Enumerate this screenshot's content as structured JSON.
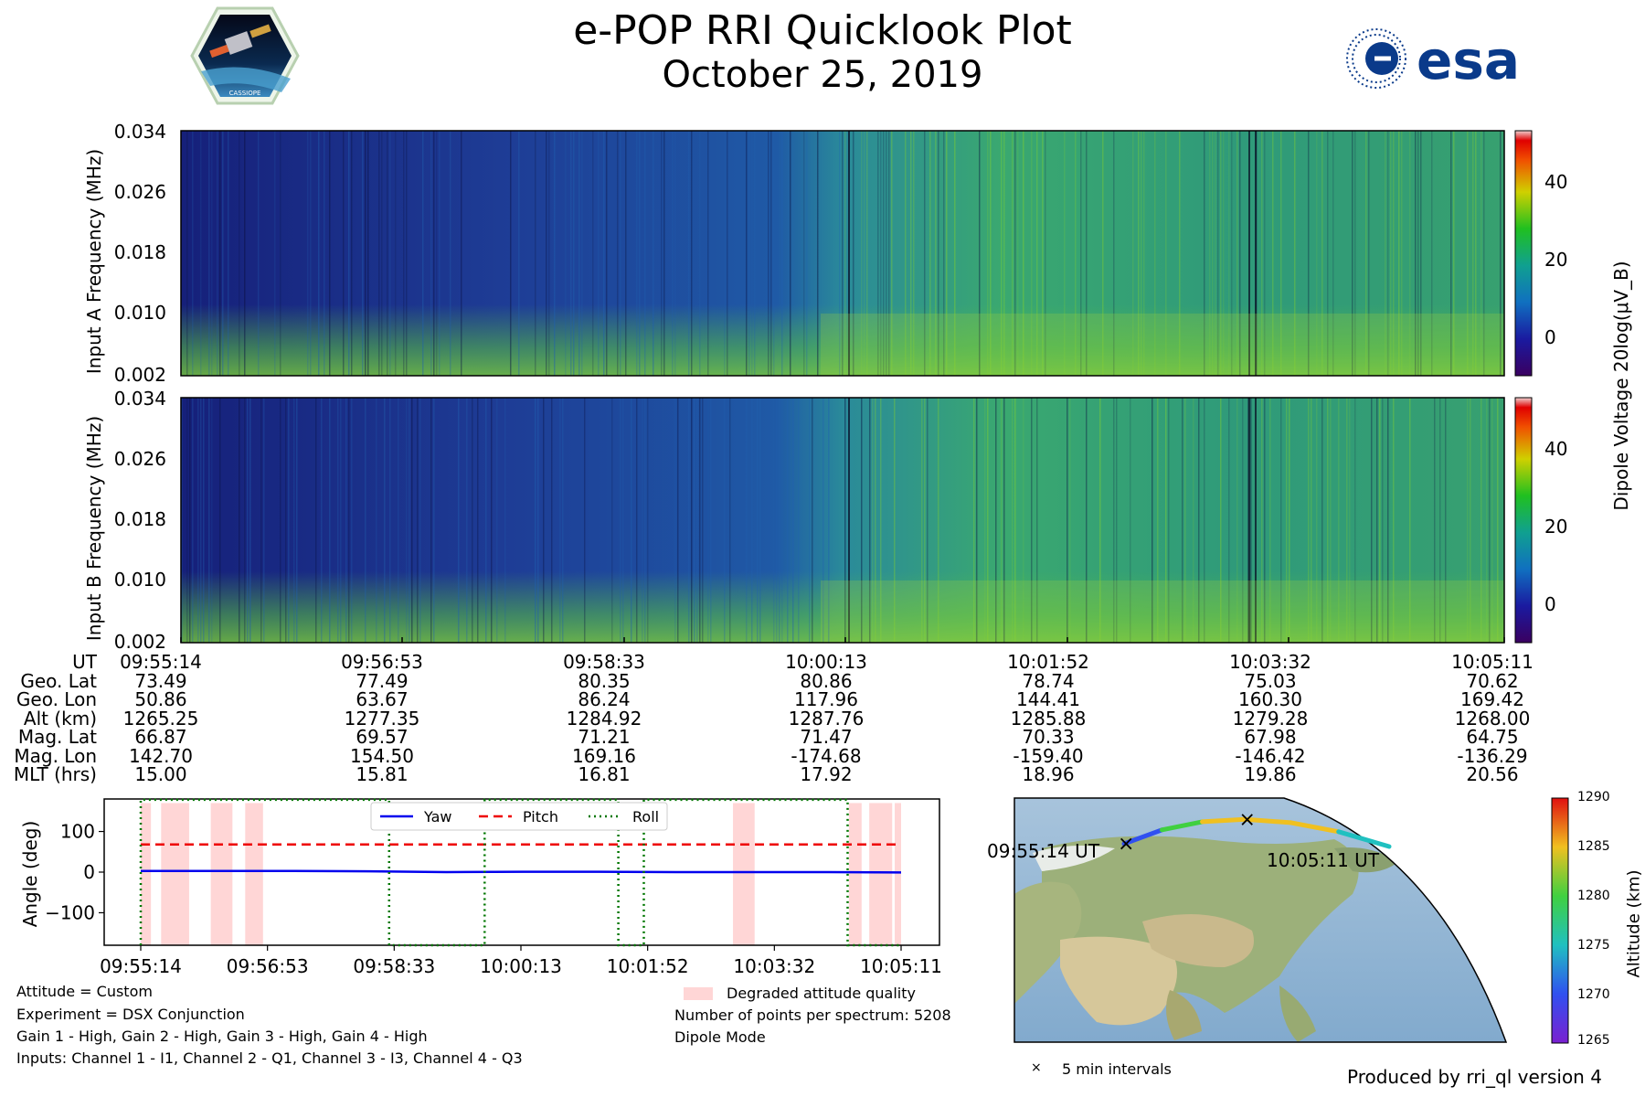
{
  "header": {
    "title": "e-POP RRI Quicklook Plot",
    "subtitle": "October 25, 2019",
    "esa_logo_text": "esa",
    "cassiope_logo_text": "CASSIOPE"
  },
  "colors": {
    "spec_low": "#1a2a8a",
    "spec_mid": "#1f7fa8",
    "spec_high": "#58c040",
    "yaw": "#0000ee",
    "pitch": "#ee0000",
    "roll": "#007700",
    "degraded": "#ffd6d6"
  },
  "chart_data": [
    {
      "type": "heatmap",
      "name": "Input A spectrogram",
      "ylabel": "Input A Frequency (MHz)",
      "yticks": [
        "0.034",
        "0.026",
        "0.018",
        "0.010",
        "0.002"
      ],
      "ylim": [
        0.002,
        0.034
      ],
      "colorbar_label": "Dipole Voltage 20log(μV_B)",
      "colorbar_ticks": [
        "40",
        "20",
        "0"
      ]
    },
    {
      "type": "heatmap",
      "name": "Input B spectrogram",
      "ylabel": "Input B Frequency (MHz)",
      "yticks": [
        "0.034",
        "0.026",
        "0.018",
        "0.010",
        "0.002"
      ],
      "ylim": [
        0.002,
        0.034
      ],
      "colorbar_ticks": [
        "40",
        "20",
        "0"
      ]
    },
    {
      "type": "table",
      "name": "Ephemeris",
      "row_labels": [
        "UT",
        "Geo. Lat",
        "Geo. Lon",
        "Alt (km)",
        "Mag. Lat",
        "Mag. Lon",
        "MLT (hrs)"
      ],
      "columns": [
        [
          "09:55:14",
          "73.49",
          "50.86",
          "1265.25",
          "66.87",
          "142.70",
          "15.00"
        ],
        [
          "09:56:53",
          "77.49",
          "63.67",
          "1277.35",
          "69.57",
          "154.50",
          "15.81"
        ],
        [
          "09:58:33",
          "80.35",
          "86.24",
          "1284.92",
          "71.21",
          "169.16",
          "16.81"
        ],
        [
          "10:00:13",
          "80.86",
          "117.96",
          "1287.76",
          "71.47",
          "-174.68",
          "17.92"
        ],
        [
          "10:01:52",
          "78.74",
          "144.41",
          "1285.88",
          "70.33",
          "-159.40",
          "18.96"
        ],
        [
          "10:03:32",
          "75.03",
          "160.30",
          "1279.28",
          "67.98",
          "-146.42",
          "19.86"
        ],
        [
          "10:05:11",
          "70.62",
          "169.42",
          "1268.00",
          "64.75",
          "-136.29",
          "20.56"
        ]
      ]
    },
    {
      "type": "line",
      "name": "Attitude",
      "ylabel": "Angle (deg)",
      "ylim": [
        -180,
        180
      ],
      "yticks": [
        "100",
        "0",
        "−100"
      ],
      "xticks": [
        "09:55:14",
        "09:56:53",
        "09:58:33",
        "10:00:13",
        "10:01:52",
        "10:03:32",
        "10:05:11"
      ],
      "x_range_s": [
        0,
        597
      ],
      "series": [
        {
          "name": "Yaw",
          "x": [
            0,
            60,
            120,
            180,
            240,
            300,
            360,
            420,
            480,
            540,
            597
          ],
          "values": [
            3,
            3,
            3,
            2,
            0,
            1,
            1,
            0,
            0,
            0,
            -1
          ]
        },
        {
          "name": "Pitch",
          "x": [
            0,
            597
          ],
          "values": [
            68,
            68
          ]
        },
        {
          "name": "Roll",
          "x": [
            0,
            0,
            195,
            195,
            270,
            270,
            375,
            375,
            395,
            395,
            555,
            555,
            597
          ],
          "values": [
            -180,
            178,
            178,
            -180,
            -180,
            178,
            178,
            -180,
            -180,
            178,
            178,
            -180,
            -180
          ]
        }
      ],
      "degraded_intervals": [
        [
          0,
          8
        ],
        [
          16,
          38
        ],
        [
          55,
          72
        ],
        [
          82,
          96
        ],
        [
          465,
          482
        ],
        [
          556,
          566
        ],
        [
          572,
          590
        ],
        [
          592,
          597
        ]
      ],
      "degraded_label": "Degraded attitude quality"
    },
    {
      "type": "scatter",
      "name": "Ground track map",
      "start_label": "09:55:14 UT",
      "end_label": "10:05:11 UT",
      "marker_label": "5 min intervals",
      "colorbar_label": "Altitude (km)",
      "colorbar_ticks": [
        "1290",
        "1285",
        "1280",
        "1275",
        "1270",
        "1265"
      ],
      "clim": [
        1265,
        1290
      ],
      "track": [
        {
          "t": 0,
          "alt": 1265.25
        },
        {
          "t": 99,
          "alt": 1277.35
        },
        {
          "t": 199,
          "alt": 1284.92
        },
        {
          "t": 299,
          "alt": 1287.76
        },
        {
          "t": 398,
          "alt": 1285.88
        },
        {
          "t": 498,
          "alt": 1279.28
        },
        {
          "t": 597,
          "alt": 1268.0
        }
      ]
    }
  ],
  "info_left": [
    "Attitude = Custom",
    "Experiment = DSX Conjunction",
    "Gain 1 - High, Gain 2 - High, Gain 3 - High, Gain 4 - High",
    "Inputs: Channel 1 - I1, Channel 2 - Q1, Channel 3 - I3, Channel 4 - Q3"
  ],
  "info_right": {
    "points": "Number of points per spectrum: 5208",
    "mode": "Dipole Mode"
  },
  "footer": "Produced by rri_ql version 4"
}
